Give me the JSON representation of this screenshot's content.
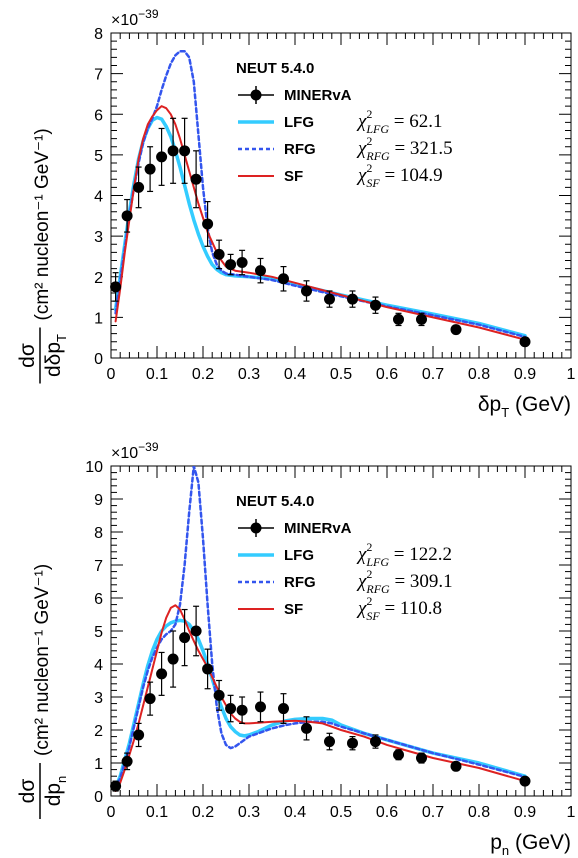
{
  "chart_data": [
    {
      "type": "line",
      "id": "dpt",
      "exponent_label": "×10",
      "exponent_power": "−39",
      "xlabel": "δp",
      "xlabel_sub": "T",
      "xlabel_unit": " (GeV)",
      "ylabel_num": "dσ",
      "ylabel_den": "dδp",
      "ylabel_den_sub": "T",
      "ylabel_unit": "(cm² nucleon⁻¹ GeV⁻¹)",
      "xlim": [
        0,
        1
      ],
      "ylim": [
        0,
        8
      ],
      "x_ticks": [
        "0",
        "0.1",
        "0.2",
        "0.3",
        "0.4",
        "0.5",
        "0.6",
        "0.7",
        "0.8",
        "0.9",
        "1"
      ],
      "y_ticks": [
        "0",
        "1",
        "2",
        "3",
        "4",
        "5",
        "6",
        "7",
        "8"
      ],
      "legend_header": "NEUT 5.4.0",
      "legend_placement": "top-right",
      "data_series": {
        "name": "MINERvA",
        "color": "#000000",
        "x": [
          0.01,
          0.035,
          0.06,
          0.085,
          0.11,
          0.135,
          0.16,
          0.185,
          0.21,
          0.235,
          0.26,
          0.285,
          0.325,
          0.375,
          0.425,
          0.475,
          0.525,
          0.575,
          0.625,
          0.675,
          0.75,
          0.9
        ],
        "y": [
          1.75,
          3.5,
          4.2,
          4.65,
          4.95,
          5.1,
          5.1,
          4.4,
          3.3,
          2.55,
          2.3,
          2.35,
          2.15,
          1.95,
          1.65,
          1.45,
          1.45,
          1.3,
          0.95,
          0.95,
          0.7,
          0.4
        ],
        "err": [
          0.35,
          0.4,
          0.5,
          0.55,
          0.7,
          0.8,
          0.8,
          0.7,
          0.55,
          0.35,
          0.25,
          0.3,
          0.3,
          0.3,
          0.25,
          0.2,
          0.2,
          0.2,
          0.15,
          0.15,
          0.1,
          0.08
        ]
      },
      "series": [
        {
          "name": "LFG",
          "color": "#33ccff",
          "style": "solid",
          "width": 3.5,
          "x": [
            0.01,
            0.02,
            0.03,
            0.04,
            0.05,
            0.06,
            0.07,
            0.08,
            0.09,
            0.1,
            0.11,
            0.12,
            0.13,
            0.14,
            0.15,
            0.16,
            0.17,
            0.18,
            0.19,
            0.2,
            0.21,
            0.22,
            0.23,
            0.24,
            0.25,
            0.27,
            0.3,
            0.35,
            0.4,
            0.5,
            0.6,
            0.7,
            0.8,
            0.9
          ],
          "y": [
            1.2,
            2.0,
            2.8,
            3.6,
            4.3,
            4.9,
            5.35,
            5.65,
            5.85,
            5.92,
            5.88,
            5.7,
            5.45,
            5.1,
            4.7,
            4.25,
            3.8,
            3.4,
            3.05,
            2.75,
            2.5,
            2.3,
            2.18,
            2.1,
            2.05,
            2.02,
            2.0,
            1.95,
            1.82,
            1.55,
            1.3,
            1.08,
            0.85,
            0.55
          ]
        },
        {
          "name": "RFG",
          "color": "#3355ee",
          "style": "dotted",
          "width": 2.5,
          "x": [
            0.01,
            0.02,
            0.03,
            0.04,
            0.05,
            0.06,
            0.07,
            0.08,
            0.09,
            0.1,
            0.11,
            0.12,
            0.13,
            0.14,
            0.15,
            0.16,
            0.17,
            0.18,
            0.19,
            0.2,
            0.21,
            0.22,
            0.23,
            0.24,
            0.25,
            0.27,
            0.3,
            0.35,
            0.4,
            0.5,
            0.6,
            0.7,
            0.8,
            0.9
          ],
          "y": [
            1.1,
            1.9,
            2.7,
            3.5,
            4.2,
            4.8,
            5.3,
            5.65,
            5.9,
            6.2,
            6.6,
            6.95,
            7.25,
            7.45,
            7.55,
            7.55,
            7.4,
            6.8,
            5.5,
            4.2,
            3.2,
            2.6,
            2.3,
            2.15,
            2.08,
            2.05,
            2.0,
            1.92,
            1.78,
            1.52,
            1.27,
            1.05,
            0.82,
            0.52
          ]
        },
        {
          "name": "SF",
          "color": "#dd2222",
          "style": "solid",
          "width": 2,
          "x": [
            0.01,
            0.02,
            0.03,
            0.04,
            0.05,
            0.06,
            0.07,
            0.08,
            0.09,
            0.1,
            0.11,
            0.12,
            0.13,
            0.14,
            0.15,
            0.16,
            0.17,
            0.18,
            0.19,
            0.2,
            0.21,
            0.22,
            0.23,
            0.24,
            0.25,
            0.27,
            0.3,
            0.35,
            0.4,
            0.5,
            0.6,
            0.7,
            0.8,
            0.9
          ],
          "y": [
            0.9,
            1.7,
            2.6,
            3.4,
            4.2,
            4.9,
            5.4,
            5.75,
            5.95,
            6.1,
            6.2,
            6.15,
            6.0,
            5.75,
            5.4,
            5.0,
            4.6,
            4.2,
            3.8,
            3.45,
            3.1,
            2.85,
            2.6,
            2.4,
            2.25,
            2.15,
            2.1,
            2.0,
            1.85,
            1.55,
            1.25,
            1.0,
            0.75,
            0.45
          ]
        }
      ],
      "chi2": [
        {
          "sub": "LFG",
          "value": "62.1"
        },
        {
          "sub": "RFG",
          "value": "321.5"
        },
        {
          "sub": "SF",
          "value": "104.9"
        }
      ]
    },
    {
      "type": "line",
      "id": "pn",
      "exponent_label": "×10",
      "exponent_power": "−39",
      "xlabel": "p",
      "xlabel_sub": "n",
      "xlabel_unit": " (GeV)",
      "ylabel_num": "dσ",
      "ylabel_den": "dp",
      "ylabel_den_sub": "n",
      "ylabel_unit": "(cm² nucleon⁻¹ GeV⁻¹)",
      "xlim": [
        0,
        1
      ],
      "ylim": [
        0,
        10
      ],
      "x_ticks": [
        "0",
        "0.1",
        "0.2",
        "0.3",
        "0.4",
        "0.5",
        "0.6",
        "0.7",
        "0.8",
        "0.9",
        "1"
      ],
      "y_ticks": [
        "0",
        "1",
        "2",
        "3",
        "4",
        "5",
        "6",
        "7",
        "8",
        "9",
        "10"
      ],
      "legend_header": "NEUT 5.4.0",
      "legend_placement": "top-right",
      "data_series": {
        "name": "MINERvA",
        "color": "#000000",
        "x": [
          0.01,
          0.035,
          0.06,
          0.085,
          0.11,
          0.135,
          0.16,
          0.185,
          0.21,
          0.235,
          0.26,
          0.285,
          0.325,
          0.375,
          0.425,
          0.475,
          0.525,
          0.575,
          0.625,
          0.675,
          0.75,
          0.9
        ],
        "y": [
          0.3,
          1.05,
          1.85,
          2.95,
          3.7,
          4.15,
          4.8,
          5.0,
          3.85,
          3.05,
          2.65,
          2.6,
          2.7,
          2.65,
          2.05,
          1.65,
          1.6,
          1.65,
          1.25,
          1.15,
          0.9,
          0.45
        ],
        "err": [
          0.15,
          0.25,
          0.35,
          0.5,
          0.65,
          0.85,
          0.85,
          0.75,
          0.6,
          0.45,
          0.4,
          0.4,
          0.45,
          0.45,
          0.35,
          0.25,
          0.2,
          0.2,
          0.15,
          0.15,
          0.1,
          0.08
        ]
      },
      "series": [
        {
          "name": "LFG",
          "color": "#33ccff",
          "style": "solid",
          "width": 3.5,
          "x": [
            0.01,
            0.02,
            0.03,
            0.04,
            0.05,
            0.06,
            0.07,
            0.08,
            0.09,
            0.1,
            0.11,
            0.12,
            0.13,
            0.14,
            0.15,
            0.16,
            0.17,
            0.18,
            0.19,
            0.2,
            0.21,
            0.22,
            0.23,
            0.24,
            0.25,
            0.26,
            0.27,
            0.28,
            0.29,
            0.3,
            0.32,
            0.35,
            0.38,
            0.4,
            0.43,
            0.46,
            0.48,
            0.5,
            0.55,
            0.6,
            0.65,
            0.7,
            0.8,
            0.9
          ],
          "y": [
            0.25,
            0.6,
            1.1,
            1.6,
            2.2,
            2.8,
            3.4,
            3.95,
            4.4,
            4.75,
            5.0,
            5.15,
            5.25,
            5.3,
            5.32,
            5.3,
            5.2,
            5.0,
            4.75,
            4.4,
            4.0,
            3.55,
            3.1,
            2.7,
            2.35,
            2.1,
            1.95,
            1.85,
            1.82,
            1.85,
            1.95,
            2.15,
            2.28,
            2.32,
            2.35,
            2.35,
            2.3,
            2.15,
            1.9,
            1.7,
            1.5,
            1.3,
            1.0,
            0.6
          ]
        },
        {
          "name": "RFG",
          "color": "#3355ee",
          "style": "dotted",
          "width": 2.5,
          "x": [
            0.01,
            0.02,
            0.03,
            0.04,
            0.05,
            0.06,
            0.07,
            0.08,
            0.09,
            0.1,
            0.11,
            0.12,
            0.13,
            0.14,
            0.15,
            0.16,
            0.17,
            0.18,
            0.19,
            0.2,
            0.21,
            0.22,
            0.23,
            0.24,
            0.25,
            0.26,
            0.27,
            0.28,
            0.29,
            0.3,
            0.32,
            0.35,
            0.38,
            0.4,
            0.43,
            0.46,
            0.48,
            0.5,
            0.55,
            0.6,
            0.65,
            0.7,
            0.8,
            0.9
          ],
          "y": [
            0.2,
            0.55,
            1.0,
            1.5,
            2.1,
            2.7,
            3.3,
            3.8,
            4.2,
            4.5,
            4.75,
            4.9,
            5.0,
            5.2,
            5.8,
            7.0,
            8.6,
            10.0,
            9.5,
            7.8,
            5.8,
            4.0,
            2.7,
            1.9,
            1.55,
            1.45,
            1.5,
            1.6,
            1.7,
            1.8,
            1.9,
            2.05,
            2.15,
            2.2,
            2.25,
            2.25,
            2.2,
            2.1,
            1.9,
            1.7,
            1.5,
            1.3,
            0.95,
            0.58
          ]
        },
        {
          "name": "SF",
          "color": "#dd2222",
          "style": "solid",
          "width": 2,
          "x": [
            0.01,
            0.02,
            0.03,
            0.04,
            0.05,
            0.06,
            0.07,
            0.08,
            0.09,
            0.1,
            0.11,
            0.12,
            0.13,
            0.14,
            0.15,
            0.16,
            0.17,
            0.18,
            0.19,
            0.2,
            0.21,
            0.22,
            0.23,
            0.24,
            0.25,
            0.26,
            0.27,
            0.28,
            0.29,
            0.3,
            0.32,
            0.35,
            0.38,
            0.4,
            0.43,
            0.46,
            0.48,
            0.5,
            0.55,
            0.6,
            0.65,
            0.7,
            0.8,
            0.9
          ],
          "y": [
            0.15,
            0.4,
            0.8,
            1.25,
            1.7,
            2.2,
            2.75,
            3.3,
            3.85,
            4.4,
            4.95,
            5.4,
            5.7,
            5.78,
            5.65,
            5.35,
            5.0,
            4.7,
            4.4,
            4.15,
            3.9,
            3.6,
            3.3,
            3.0,
            2.75,
            2.5,
            2.35,
            2.25,
            2.2,
            2.2,
            2.22,
            2.25,
            2.27,
            2.28,
            2.25,
            2.2,
            2.1,
            2.0,
            1.8,
            1.55,
            1.35,
            1.15,
            0.85,
            0.45
          ]
        }
      ],
      "chi2": [
        {
          "sub": "LFG",
          "value": "122.2"
        },
        {
          "sub": "RFG",
          "value": "309.1"
        },
        {
          "sub": "SF",
          "value": "110.8"
        }
      ]
    }
  ]
}
